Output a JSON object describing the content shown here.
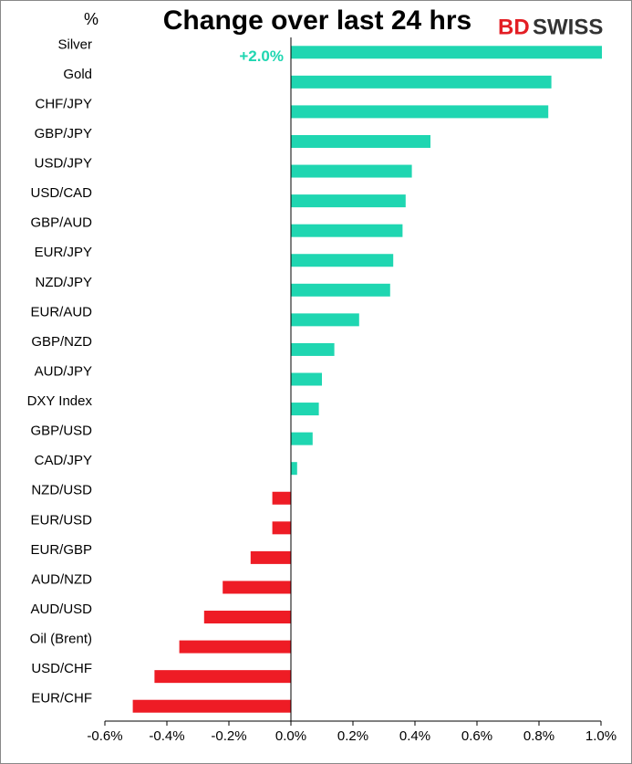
{
  "chart_data": {
    "type": "barh",
    "title": "Change over last 24 hrs",
    "y_label": "%",
    "logo": [
      "BD",
      "SWISS"
    ],
    "categories": [
      "Silver",
      "Gold",
      "CHF/JPY",
      "GBP/JPY",
      "USD/JPY",
      "USD/CAD",
      "GBP/AUD",
      "EUR/JPY",
      "NZD/JPY",
      "EUR/AUD",
      "GBP/NZD",
      "AUD/JPY",
      "DXY Index",
      "GBP/USD",
      "CAD/JPY",
      "NZD/USD",
      "EUR/USD",
      "EUR/GBP",
      "AUD/NZD",
      "AUD/USD",
      "Oil (Brent)",
      "USD/CHF",
      "EUR/CHF"
    ],
    "values": [
      2.0,
      0.84,
      0.83,
      0.45,
      0.39,
      0.37,
      0.36,
      0.33,
      0.32,
      0.22,
      0.14,
      0.1,
      0.09,
      0.07,
      0.02,
      -0.06,
      -0.06,
      -0.13,
      -0.22,
      -0.28,
      -0.36,
      -0.44,
      -0.51
    ],
    "value_labels": [
      "+2.0%",
      null,
      null,
      null,
      null,
      null,
      null,
      null,
      null,
      null,
      null,
      null,
      null,
      null,
      null,
      null,
      null,
      null,
      null,
      null,
      null,
      null,
      null
    ],
    "color": "#1fd6b1",
    "negative_color": "#ee1c25",
    "xlim": [
      -0.6,
      1.0
    ],
    "xticks": [
      {
        "value": -0.6,
        "label": "-0.6%"
      },
      {
        "value": -0.4,
        "label": "-0.4%"
      },
      {
        "value": -0.2,
        "label": "-0.2%"
      },
      {
        "value": 0,
        "label": "0.0%"
      },
      {
        "value": 0.2,
        "label": "0.2%"
      },
      {
        "value": 0.4,
        "label": "0.4%"
      },
      {
        "value": 0.6,
        "label": "0.6%"
      },
      {
        "value": 0.8,
        "label": "0.8%"
      },
      {
        "value": 1.0,
        "label": "1.0%"
      }
    ]
  }
}
